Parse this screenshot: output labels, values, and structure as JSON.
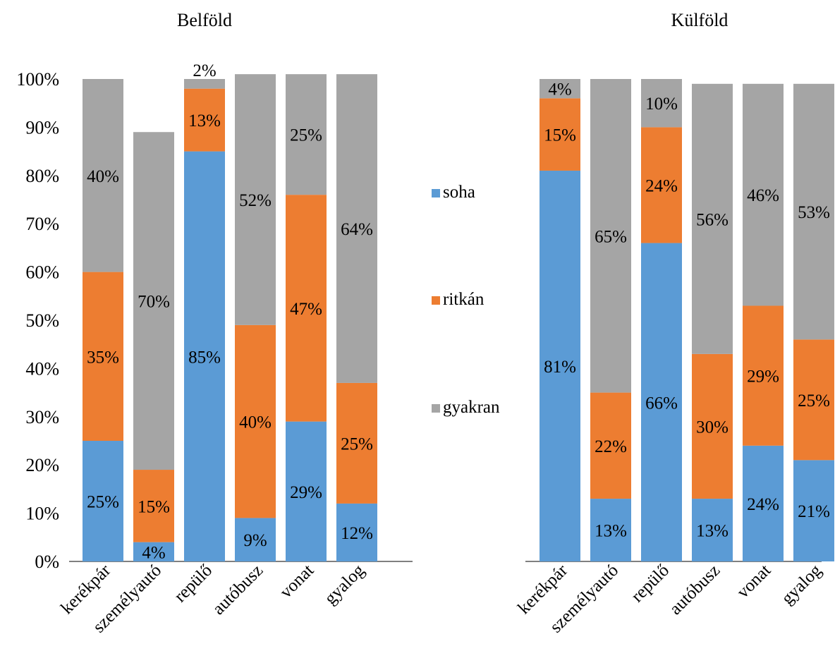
{
  "chart_data": [
    {
      "type": "bar",
      "stacked": true,
      "title": "Belföld",
      "categories": [
        "kerékpár",
        "személyautó",
        "repülő",
        "autóbusz",
        "vonat",
        "gyalog"
      ],
      "series": [
        {
          "name": "soha",
          "values": [
            0.25,
            0.04,
            0.85,
            0.09,
            0.29,
            0.12
          ],
          "labels": [
            "25%",
            "4%",
            "85%",
            "9%",
            "29%",
            "12%"
          ]
        },
        {
          "name": "ritkán",
          "values": [
            0.35,
            0.15,
            0.13,
            0.4,
            0.47,
            0.25
          ],
          "labels": [
            "35%",
            "15%",
            "13%",
            "40%",
            "47%",
            "25%"
          ]
        },
        {
          "name": "gyakran",
          "values": [
            0.4,
            0.7,
            0.02,
            0.52,
            0.25,
            0.64
          ],
          "labels": [
            "40%",
            "70%",
            "2%",
            "52%",
            "25%",
            "64%"
          ]
        }
      ],
      "ylim": [
        0,
        1
      ],
      "yticks": [
        "0%",
        "10%",
        "20%",
        "30%",
        "40%",
        "50%",
        "60%",
        "70%",
        "80%",
        "90%",
        "100%"
      ],
      "grid": false
    },
    {
      "type": "bar",
      "stacked": true,
      "title": "Külföld",
      "categories": [
        "kerékpár",
        "személyautó",
        "repülő",
        "autóbusz",
        "vonat",
        "gyalog"
      ],
      "series": [
        {
          "name": "soha",
          "values": [
            0.81,
            0.13,
            0.66,
            0.13,
            0.24,
            0.21
          ],
          "labels": [
            "81%",
            "13%",
            "66%",
            "13%",
            "24%",
            "21%"
          ]
        },
        {
          "name": "ritkán",
          "values": [
            0.15,
            0.22,
            0.24,
            0.3,
            0.29,
            0.25
          ],
          "labels": [
            "15%",
            "22%",
            "24%",
            "30%",
            "29%",
            "25%"
          ]
        },
        {
          "name": "gyakran",
          "values": [
            0.04,
            0.65,
            0.1,
            0.56,
            0.46,
            0.53
          ],
          "labels": [
            "4%",
            "65%",
            "10%",
            "56%",
            "46%",
            "53%"
          ]
        }
      ],
      "ylim": [
        0,
        1
      ],
      "grid": false
    }
  ],
  "legend": {
    "placement": "center",
    "items": [
      {
        "name": "soha",
        "color": "#5B9BD5"
      },
      {
        "name": "ritkán",
        "color": "#ED7D31"
      },
      {
        "name": "gyakran",
        "color": "#A5A5A5"
      }
    ]
  },
  "colors": {
    "soha": "#5B9BD5",
    "ritkán": "#ED7D31",
    "gyakran": "#A5A5A5",
    "axis": "#000000"
  }
}
